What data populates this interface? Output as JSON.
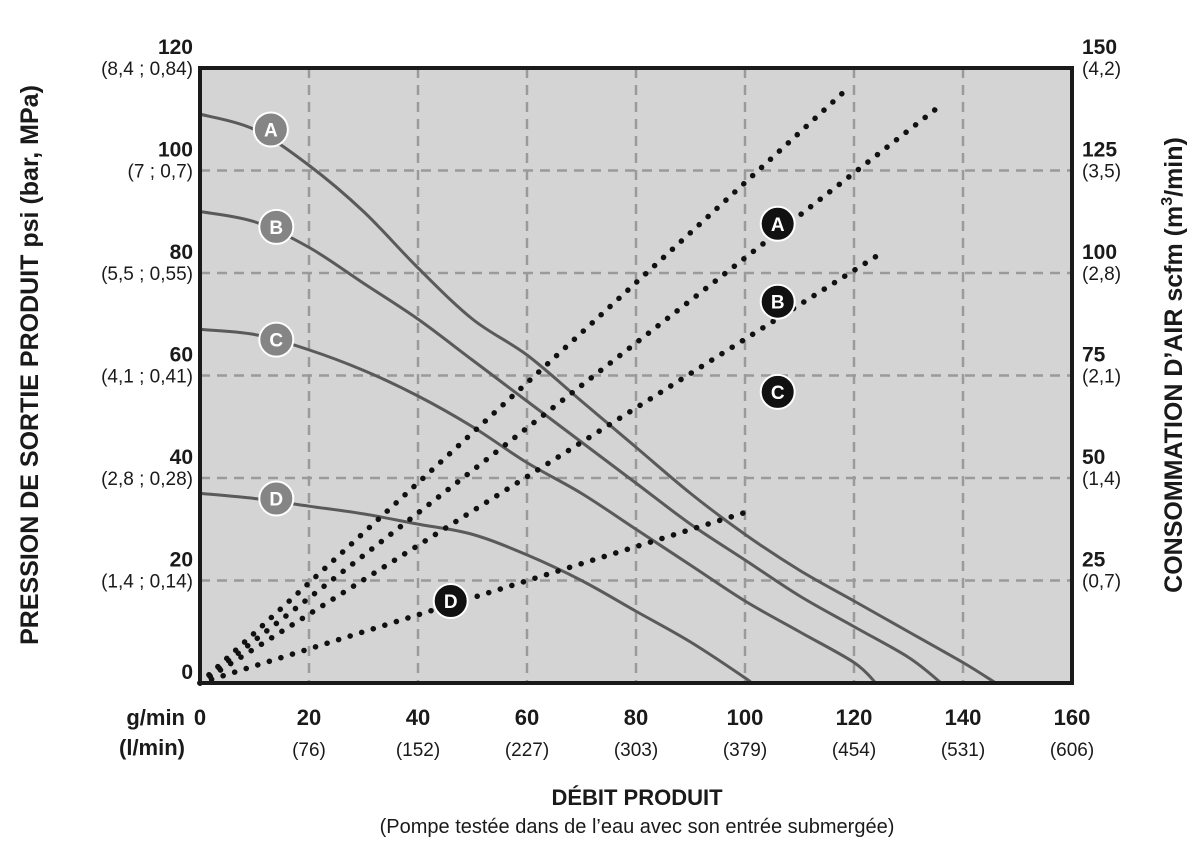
{
  "chart_data": {
    "type": "line",
    "ylabel_left": "PRESSION DE SORTIE PRODUIT psi (bar, MPa)",
    "ylabel_right_prefix": "CONSOMMATION D’AIR scfm (m",
    "ylabel_right_sup": "3",
    "ylabel_right_suffix": "/min)",
    "xlabel": "DÉBIT PRODUIT",
    "subtitle": "(Pompe testée dans de l’eau avec son entrée submergée)",
    "x_unit_label": "g/min",
    "x_unit_label_secondary": "(l/min)",
    "xlim": [
      0,
      160
    ],
    "ylim_left": [
      0,
      120
    ],
    "ylim_right": [
      0,
      150
    ],
    "x_ticks": [
      {
        "value": 0,
        "label": "0",
        "secondary": ""
      },
      {
        "value": 20,
        "label": "20",
        "secondary": "(76)"
      },
      {
        "value": 40,
        "label": "40",
        "secondary": "(152)"
      },
      {
        "value": 60,
        "label": "60",
        "secondary": "(227)"
      },
      {
        "value": 80,
        "label": "80",
        "secondary": "(303)"
      },
      {
        "value": 100,
        "label": "100",
        "secondary": "(379)"
      },
      {
        "value": 120,
        "label": "120",
        "secondary": "(454)"
      },
      {
        "value": 140,
        "label": "140",
        "secondary": "(531)"
      },
      {
        "value": 160,
        "label": "160",
        "secondary": "(606)"
      }
    ],
    "y_left_ticks": [
      {
        "value": 0,
        "label": "0",
        "secondary": ""
      },
      {
        "value": 20,
        "label": "20",
        "secondary": "(1,4 ; 0,14)"
      },
      {
        "value": 40,
        "label": "40",
        "secondary": "(2,8 ; 0,28)"
      },
      {
        "value": 60,
        "label": "60",
        "secondary": "(4,1 ; 0,41)"
      },
      {
        "value": 80,
        "label": "80",
        "secondary": "(5,5 ; 0,55)"
      },
      {
        "value": 100,
        "label": "100",
        "secondary": "(7 ; 0,7)"
      },
      {
        "value": 120,
        "label": "120",
        "secondary": "(8,4 ; 0,84)"
      }
    ],
    "y_right_ticks": [
      {
        "value": 25,
        "label": "25",
        "secondary": "(0,7)"
      },
      {
        "value": 50,
        "label": "50",
        "secondary": "(1,4)"
      },
      {
        "value": 75,
        "label": "75",
        "secondary": "(2,1)"
      },
      {
        "value": 100,
        "label": "100",
        "secondary": "(2,8)"
      },
      {
        "value": 125,
        "label": "125",
        "secondary": "(3,5)"
      },
      {
        "value": 150,
        "label": "150",
        "secondary": "(4,2)"
      }
    ],
    "grid": true,
    "pressure_series": [
      {
        "name": "A",
        "marker_at": [
          13,
          108
        ],
        "points": [
          [
            0,
            111
          ],
          [
            10,
            108
          ],
          [
            20,
            101
          ],
          [
            30,
            92
          ],
          [
            40,
            81
          ],
          [
            50,
            71
          ],
          [
            60,
            64
          ],
          [
            70,
            55
          ],
          [
            80,
            46
          ],
          [
            90,
            37
          ],
          [
            100,
            29
          ],
          [
            110,
            22
          ],
          [
            120,
            16
          ],
          [
            130,
            10
          ],
          [
            140,
            4
          ],
          [
            146,
            0
          ]
        ]
      },
      {
        "name": "B",
        "marker_at": [
          14,
          89
        ],
        "points": [
          [
            0,
            92
          ],
          [
            10,
            90
          ],
          [
            20,
            85
          ],
          [
            30,
            78
          ],
          [
            40,
            71
          ],
          [
            50,
            63
          ],
          [
            60,
            55
          ],
          [
            70,
            47
          ],
          [
            80,
            39
          ],
          [
            90,
            31
          ],
          [
            100,
            24
          ],
          [
            110,
            17
          ],
          [
            120,
            11
          ],
          [
            130,
            5
          ],
          [
            136,
            0
          ]
        ]
      },
      {
        "name": "C",
        "marker_at": [
          14,
          67
        ],
        "points": [
          [
            0,
            69
          ],
          [
            10,
            68
          ],
          [
            20,
            65
          ],
          [
            30,
            61
          ],
          [
            40,
            56
          ],
          [
            50,
            50
          ],
          [
            60,
            43
          ],
          [
            70,
            37
          ],
          [
            80,
            30
          ],
          [
            90,
            23
          ],
          [
            100,
            16
          ],
          [
            110,
            10
          ],
          [
            120,
            4
          ],
          [
            124,
            0
          ]
        ]
      },
      {
        "name": "D",
        "marker_at": [
          14,
          36
        ],
        "points": [
          [
            0,
            37
          ],
          [
            10,
            36
          ],
          [
            20,
            34.5
          ],
          [
            30,
            33
          ],
          [
            40,
            31
          ],
          [
            50,
            29
          ],
          [
            60,
            25
          ],
          [
            70,
            20
          ],
          [
            80,
            14
          ],
          [
            90,
            8
          ],
          [
            100,
            1
          ],
          [
            101,
            0
          ]
        ]
      }
    ],
    "air_series": [
      {
        "name": "A",
        "marker_at": [
          106,
          112
        ],
        "points": [
          [
            0,
            0
          ],
          [
            118,
            144
          ]
        ]
      },
      {
        "name": "B",
        "marker_at": [
          106,
          93
        ],
        "points": [
          [
            0,
            0
          ],
          [
            136,
            141
          ]
        ]
      },
      {
        "name": "C",
        "marker_at": [
          106,
          71
        ],
        "points": [
          [
            0,
            0
          ],
          [
            124,
            104
          ]
        ]
      },
      {
        "name": "D",
        "marker_at": [
          46,
          20
        ],
        "points": [
          [
            0,
            0
          ],
          [
            101,
            42
          ]
        ]
      }
    ],
    "colors": {
      "plot_bg": "#d4d4d4",
      "frame": "#1a1a1a",
      "grid": "#9a9a9a",
      "pressure_line": "#5a5a5a",
      "air_dots": "#111111",
      "pressure_marker": "#858585",
      "air_marker": "#111111"
    }
  }
}
